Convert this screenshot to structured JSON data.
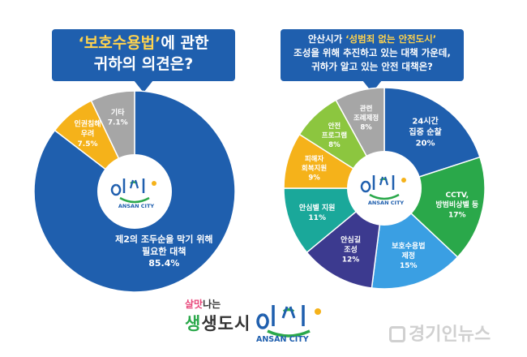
{
  "left_question": {
    "highlight": "‘보호수용법’",
    "line1_rest": "에 관한",
    "line2": "귀하의 의견은?"
  },
  "right_question": {
    "line1_pre": "안산시가 ",
    "highlight": "‘성범죄 없는 안전도시’",
    "line2": "조성을 위해 추진하고 있는 대책 가운데,",
    "line3": "귀하가 알고 있는 안전 대책은?"
  },
  "logo": {
    "brand_text": "ANSAN CITY"
  },
  "footer": {
    "slogan_part1": "살맛",
    "slogan_part2": "나는",
    "slogan_line2_a": "생",
    "slogan_line2_b": "생도시",
    "brand_text": "ANSAN CITY"
  },
  "watermark": "경기인뉴스",
  "colors": {
    "blue": "#1f5fae",
    "yellow": "#f5b21a",
    "gray": "#a6a6a6",
    "light_blue": "#3a9fe3",
    "purple": "#3c3a8f",
    "teal": "#1aa89a",
    "lime": "#8cc63f"
  },
  "chart_data": [
    {
      "type": "pie",
      "title": "‘보호수용법’에 관한 귀하의 의견은?",
      "unit": "%",
      "slices": [
        {
          "label_lines": [
            "제2의 조두순을 막기 위해",
            "필요한 대책"
          ],
          "value": 85.4,
          "value_text": "85.4%",
          "color": "#1f5fae"
        },
        {
          "label_lines": [
            "인권침해",
            "우려"
          ],
          "value": 7.5,
          "value_text": "7.5%",
          "color": "#f5b21a"
        },
        {
          "label_lines": [
            "기타"
          ],
          "value": 7.1,
          "value_text": "7.1%",
          "color": "#a6a6a6"
        }
      ]
    },
    {
      "type": "pie",
      "title": "안산시가 ‘성범죄 없는 안전도시’ 조성을 위해 추진하고 있는 대책 가운데, 귀하가 알고 있는 안전 대책은?",
      "unit": "%",
      "slices": [
        {
          "label_lines": [
            "24시간",
            "집중 순찰"
          ],
          "value": 20,
          "value_text": "20%",
          "color": "#1f5fae"
        },
        {
          "label_lines": [
            "CCTV,",
            "방범비상벨 등"
          ],
          "value": 17,
          "value_text": "17%",
          "color": "#2aa84a"
        },
        {
          "label_lines": [
            "보호수용법",
            "제정"
          ],
          "value": 15,
          "value_text": "15%",
          "color": "#3a9fe3"
        },
        {
          "label_lines": [
            "안심길",
            "조성"
          ],
          "value": 12,
          "value_text": "12%",
          "color": "#3c3a8f"
        },
        {
          "label_lines": [
            "안심벨 지원"
          ],
          "value": 11,
          "value_text": "11%",
          "color": "#1aa89a"
        },
        {
          "label_lines": [
            "피해자",
            "회복지원"
          ],
          "value": 9,
          "value_text": "9%",
          "color": "#f5b21a"
        },
        {
          "label_lines": [
            "안전",
            "프로그램"
          ],
          "value": 8,
          "value_text": "8%",
          "color": "#8cc63f"
        },
        {
          "label_lines": [
            "관련",
            "조례제정"
          ],
          "value": 8,
          "value_text": "8%",
          "color": "#a6a6a6"
        }
      ]
    }
  ]
}
